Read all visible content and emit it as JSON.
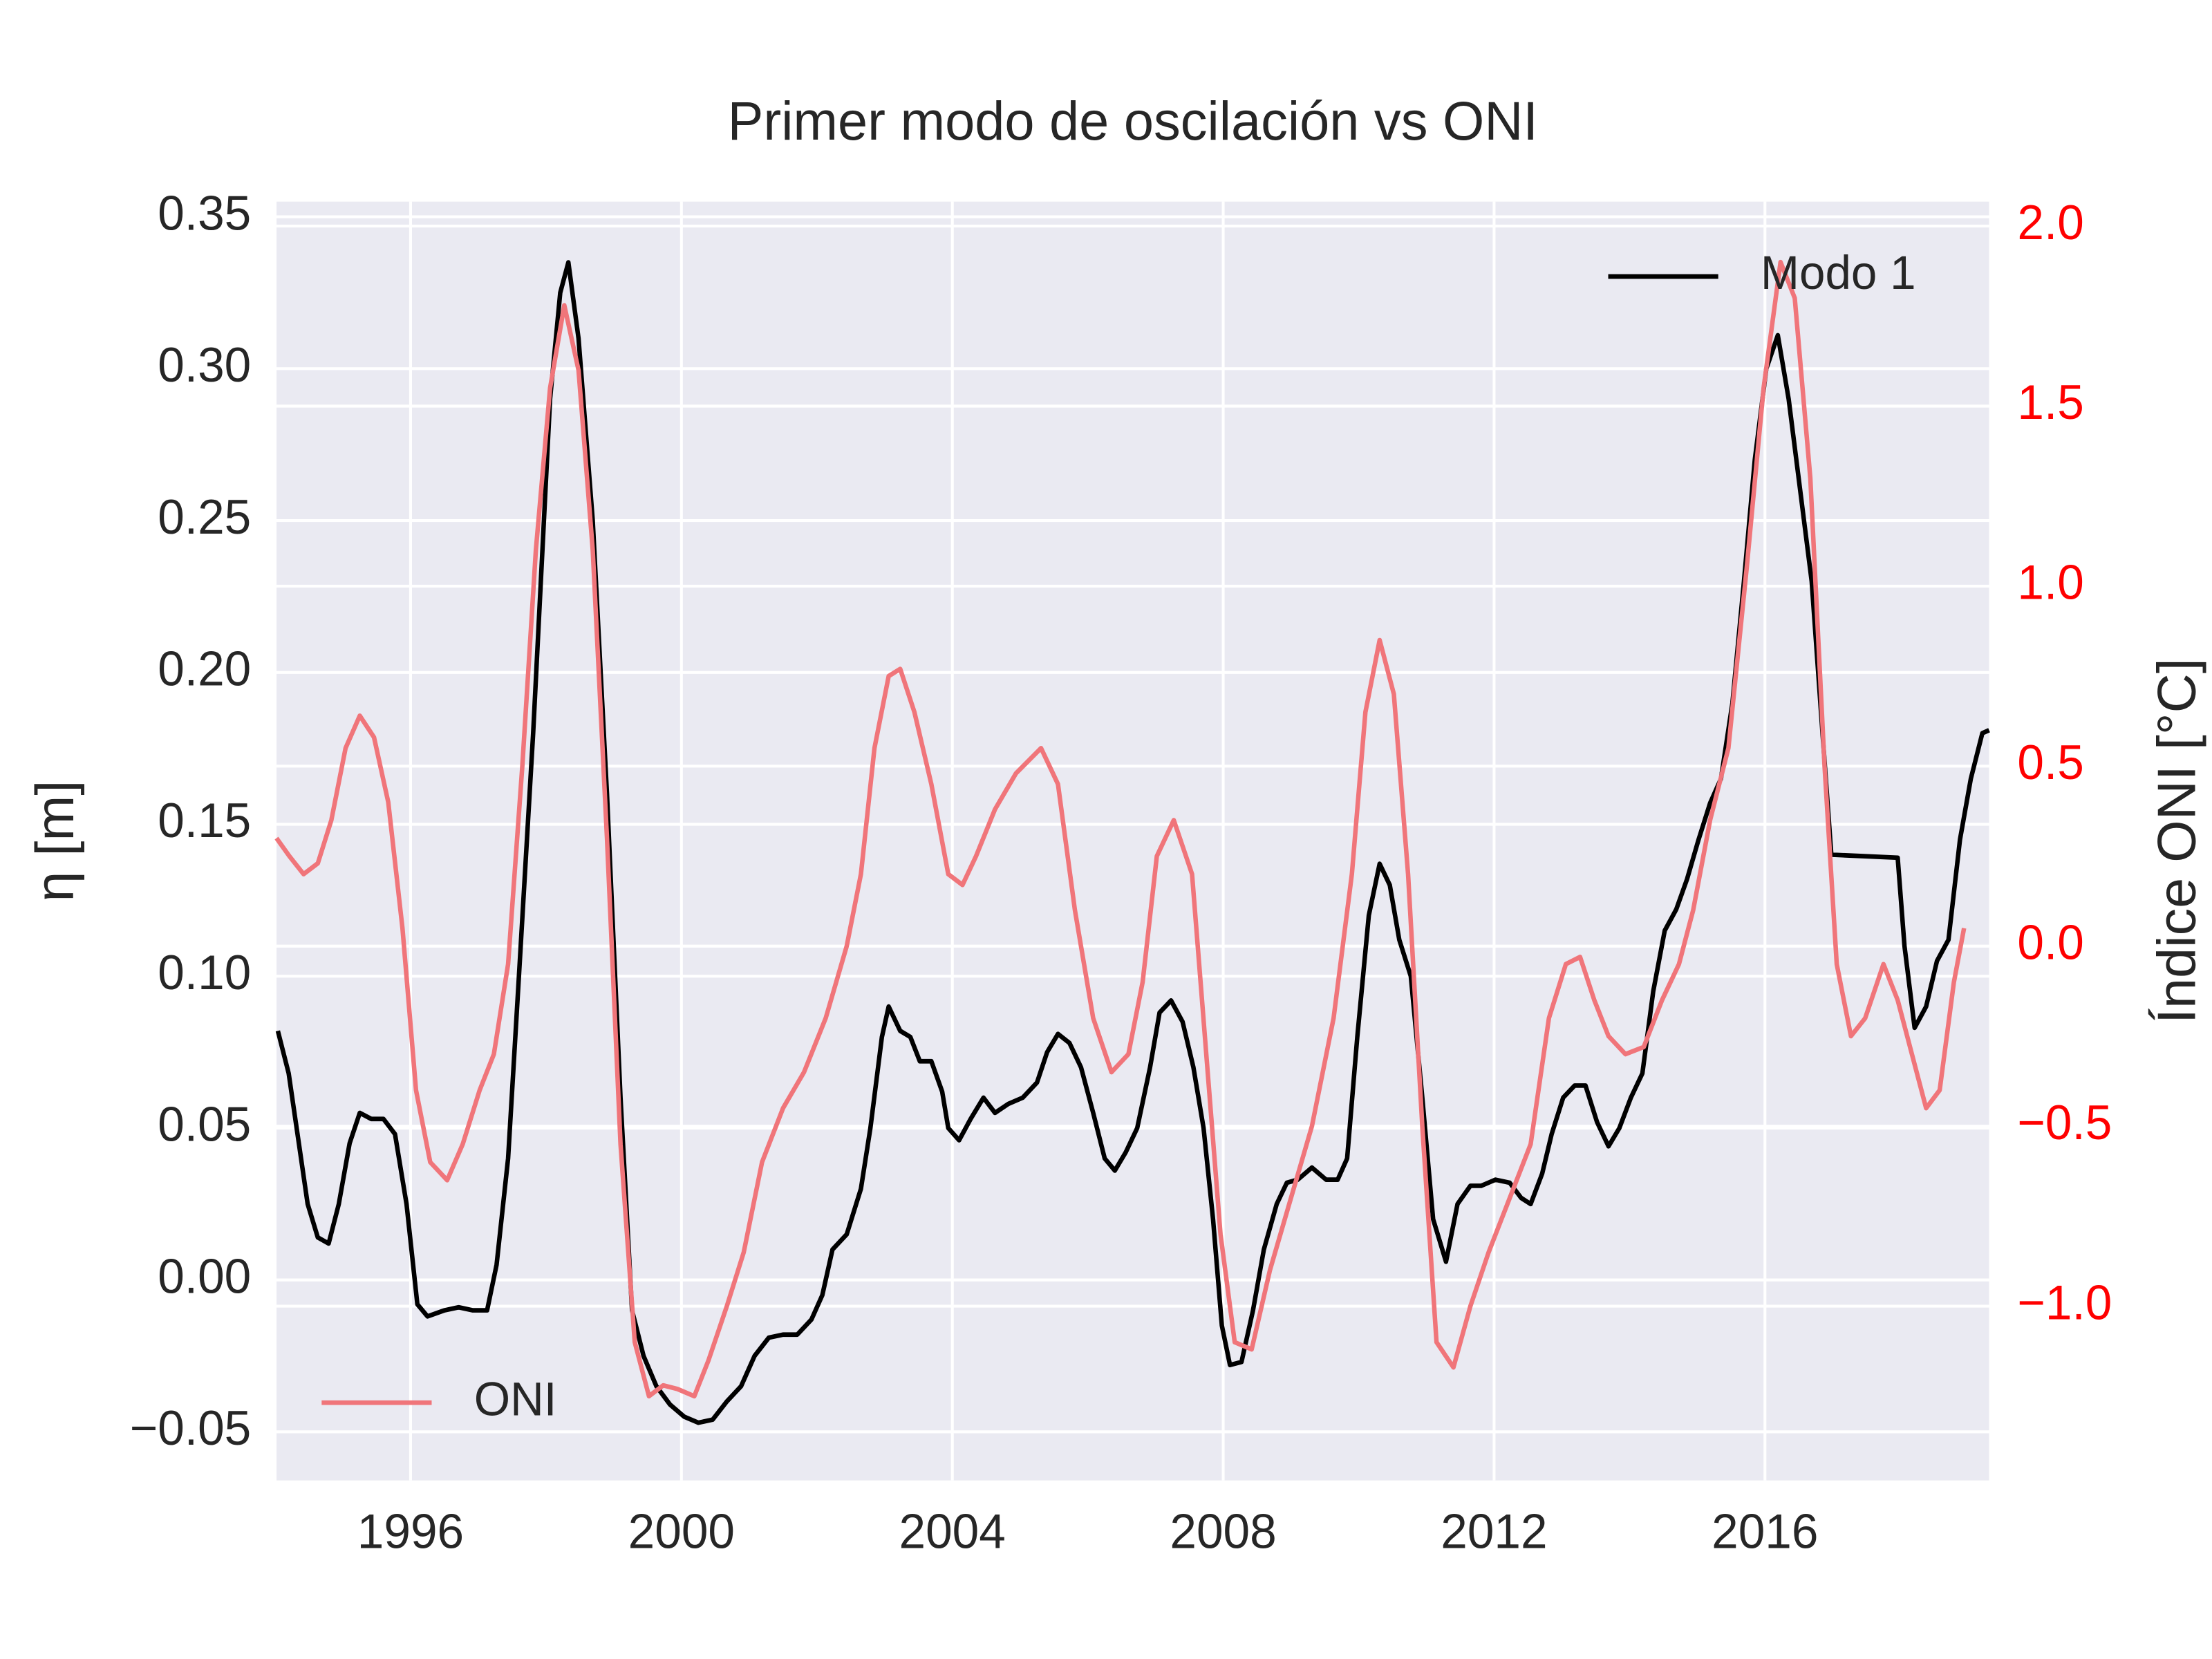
{
  "chart_data": {
    "type": "line",
    "title": "Primer modo de oscilación vs ONI",
    "ylabel": "η [m]",
    "y2label": "Índice ONI [°C]",
    "grid": true,
    "xlim": [
      1994.02,
      2019.31
    ],
    "xticks": [
      1996,
      2000,
      2004,
      2008,
      2012,
      2016
    ],
    "ylim": [
      -0.066,
      0.355
    ],
    "yticks": [
      {
        "value": -0.05,
        "label": "−0.05"
      },
      {
        "value": 0,
        "label": "0.00"
      },
      0.05,
      {
        "value": 0.1,
        "label": "0.10"
      },
      0.15,
      {
        "value": 0.2,
        "label": "0.20"
      },
      0.25,
      {
        "value": 0.3,
        "label": "0.30"
      },
      0.35
    ],
    "y2lim": [
      -1.484,
      2.068
    ],
    "y2ticks": [
      {
        "value": -1,
        "label": "−1.0"
      },
      {
        "value": -0.5,
        "label": "−0.5"
      },
      {
        "value": 0,
        "label": "0.0"
      },
      0.5,
      {
        "value": 1,
        "label": "1.0"
      },
      1.5,
      {
        "value": 2,
        "label": "2.0"
      }
    ],
    "y2color": "#ff0000",
    "series": [
      {
        "name": "Modo 1",
        "color": "#000000",
        "legend": "upper right",
        "x": [
          1994.04,
          1994.2,
          1994.35,
          1994.48,
          1994.63,
          1994.79,
          1994.94,
          1995.1,
          1995.25,
          1995.42,
          1995.6,
          1995.77,
          1995.94,
          1996.1,
          1996.25,
          1996.5,
          1996.71,
          1996.92,
          1997.13,
          1997.27,
          1997.44,
          1997.6,
          1997.81,
          1998.06,
          1998.21,
          1998.33,
          1998.48,
          1998.69,
          1998.9,
          1999.1,
          1999.27,
          1999.44,
          1999.63,
          1999.83,
          2000.04,
          2000.25,
          2000.46,
          2000.67,
          2000.88,
          2001.08,
          2001.29,
          2001.5,
          2001.71,
          2001.92,
          2002.08,
          2002.23,
          2002.44,
          2002.65,
          2002.79,
          2002.96,
          2003.06,
          2003.23,
          2003.38,
          2003.52,
          2003.69,
          2003.85,
          2003.94,
          2004.1,
          2004.27,
          2004.46,
          2004.63,
          2004.83,
          2005.04,
          2005.25,
          2005.4,
          2005.56,
          2005.73,
          2005.9,
          2006.08,
          2006.25,
          2006.4,
          2006.56,
          2006.73,
          2006.92,
          2007.06,
          2007.23,
          2007.4,
          2007.56,
          2007.71,
          2007.85,
          2007.98,
          2008.1,
          2008.27,
          2008.44,
          2008.6,
          2008.79,
          2008.94,
          2009.1,
          2009.31,
          2009.52,
          2009.69,
          2009.83,
          2009.98,
          2010.15,
          2010.31,
          2010.46,
          2010.6,
          2010.77,
          2010.94,
          2011.1,
          2011.29,
          2011.46,
          2011.65,
          2011.81,
          2012.02,
          2012.23,
          2012.4,
          2012.54,
          2012.71,
          2012.85,
          2013.02,
          2013.19,
          2013.35,
          2013.52,
          2013.69,
          2013.85,
          2014.02,
          2014.19,
          2014.35,
          2014.52,
          2014.69,
          2014.85,
          2015.02,
          2015.19,
          2015.35,
          2015.52,
          2015.69,
          2015.85,
          2016.02,
          2016.19,
          2016.35,
          2016.52,
          2016.69,
          2016.85,
          2016.98,
          2017.96,
          2018.06,
          2018.21,
          2018.38,
          2018.54,
          2018.71,
          2018.88,
          2019.04,
          2019.21,
          2019.31
        ],
        "values": [
          0.082,
          0.068,
          0.045,
          0.025,
          0.014,
          0.012,
          0.025,
          0.045,
          0.055,
          0.053,
          0.053,
          0.048,
          0.025,
          -0.008,
          -0.012,
          -0.01,
          -0.009,
          -0.01,
          -0.01,
          0.005,
          0.04,
          0.1,
          0.18,
          0.29,
          0.325,
          0.335,
          0.31,
          0.25,
          0.16,
          0.06,
          -0.01,
          -0.025,
          -0.035,
          -0.041,
          -0.045,
          -0.047,
          -0.046,
          -0.04,
          -0.035,
          -0.025,
          -0.019,
          -0.018,
          -0.018,
          -0.013,
          -0.005,
          0.01,
          0.015,
          0.03,
          0.05,
          0.08,
          0.09,
          0.082,
          0.08,
          0.072,
          0.072,
          0.062,
          0.05,
          0.046,
          0.053,
          0.06,
          0.055,
          0.058,
          0.06,
          0.065,
          0.075,
          0.081,
          0.078,
          0.07,
          0.055,
          0.04,
          0.036,
          0.042,
          0.05,
          0.07,
          0.088,
          0.092,
          0.085,
          0.07,
          0.05,
          0.02,
          -0.015,
          -0.028,
          -0.027,
          -0.01,
          0.01,
          0.025,
          0.032,
          0.033,
          0.037,
          0.033,
          0.033,
          0.04,
          0.08,
          0.12,
          0.137,
          0.13,
          0.112,
          0.1,
          0.06,
          0.02,
          0.006,
          0.025,
          0.031,
          0.031,
          0.033,
          0.032,
          0.027,
          0.025,
          0.035,
          0.048,
          0.06,
          0.064,
          0.064,
          0.052,
          0.044,
          0.05,
          0.06,
          0.068,
          0.095,
          0.115,
          0.122,
          0.132,
          0.145,
          0.157,
          0.165,
          0.19,
          0.23,
          0.27,
          0.3,
          0.311,
          0.29,
          0.26,
          0.23,
          0.18,
          0.14,
          0.139,
          0.11,
          0.083,
          0.09,
          0.105,
          0.112,
          0.145,
          0.165,
          0.18,
          0.181
        ]
      },
      {
        "name": "ONI",
        "color": "#f0757a",
        "axis": "y2",
        "legend": "lower left",
        "x": [
          1994.02,
          1994.21,
          1994.42,
          1994.63,
          1994.83,
          1995.04,
          1995.25,
          1995.46,
          1995.67,
          1995.88,
          1996.08,
          1996.29,
          1996.54,
          1996.77,
          1997.02,
          1997.23,
          1997.44,
          1997.65,
          1997.85,
          1998.06,
          1998.27,
          1998.48,
          1998.69,
          1998.9,
          1999.1,
          1999.31,
          1999.52,
          1999.73,
          1999.94,
          2000.19,
          2000.4,
          2000.67,
          2000.92,
          2001.19,
          2001.5,
          2001.81,
          2002.13,
          2002.44,
          2002.65,
          2002.85,
          2003.06,
          2003.23,
          2003.44,
          2003.69,
          2003.94,
          2004.15,
          2004.35,
          2004.63,
          2004.94,
          2005.31,
          2005.56,
          2005.81,
          2006.08,
          2006.35,
          2006.6,
          2006.81,
          2007.02,
          2007.27,
          2007.54,
          2007.75,
          2007.96,
          2008.17,
          2008.42,
          2008.69,
          2009.0,
          2009.31,
          2009.63,
          2009.9,
          2010.1,
          2010.31,
          2010.52,
          2010.73,
          2010.94,
          2011.15,
          2011.4,
          2011.65,
          2011.92,
          2012.23,
          2012.54,
          2012.81,
          2013.06,
          2013.27,
          2013.48,
          2013.69,
          2013.94,
          2014.21,
          2014.48,
          2014.73,
          2014.94,
          2015.19,
          2015.46,
          2015.73,
          2015.98,
          2016.23,
          2016.44,
          2016.67,
          2016.88,
          2017.06,
          2017.27,
          2017.48,
          2017.75,
          2017.96,
          2018.17,
          2018.38,
          2018.58,
          2018.79,
          2018.94
        ],
        "values": [
          0.3,
          0.25,
          0.2,
          0.23,
          0.35,
          0.55,
          0.64,
          0.58,
          0.4,
          0.05,
          -0.4,
          -0.6,
          -0.65,
          -0.55,
          -0.4,
          -0.3,
          -0.05,
          0.5,
          1.1,
          1.55,
          1.78,
          1.6,
          1.1,
          0.3,
          -0.55,
          -1.1,
          -1.25,
          -1.22,
          -1.23,
          -1.25,
          -1.15,
          -1.0,
          -0.85,
          -0.6,
          -0.45,
          -0.35,
          -0.2,
          0.0,
          0.2,
          0.55,
          0.75,
          0.77,
          0.65,
          0.45,
          0.2,
          0.17,
          0.25,
          0.38,
          0.48,
          0.55,
          0.45,
          0.1,
          -0.2,
          -0.35,
          -0.3,
          -0.1,
          0.25,
          0.35,
          0.2,
          -0.3,
          -0.8,
          -1.1,
          -1.12,
          -0.9,
          -0.7,
          -0.5,
          -0.2,
          0.2,
          0.65,
          0.85,
          0.7,
          0.2,
          -0.5,
          -1.1,
          -1.17,
          -1.0,
          -0.85,
          -0.7,
          -0.55,
          -0.2,
          -0.05,
          -0.03,
          -0.15,
          -0.25,
          -0.3,
          -0.28,
          -0.15,
          -0.05,
          0.1,
          0.35,
          0.55,
          1.05,
          1.55,
          1.9,
          1.8,
          1.3,
          0.5,
          -0.05,
          -0.25,
          -0.2,
          -0.05,
          -0.15,
          -0.3,
          -0.45,
          -0.4,
          -0.1,
          0.05
        ]
      }
    ]
  }
}
